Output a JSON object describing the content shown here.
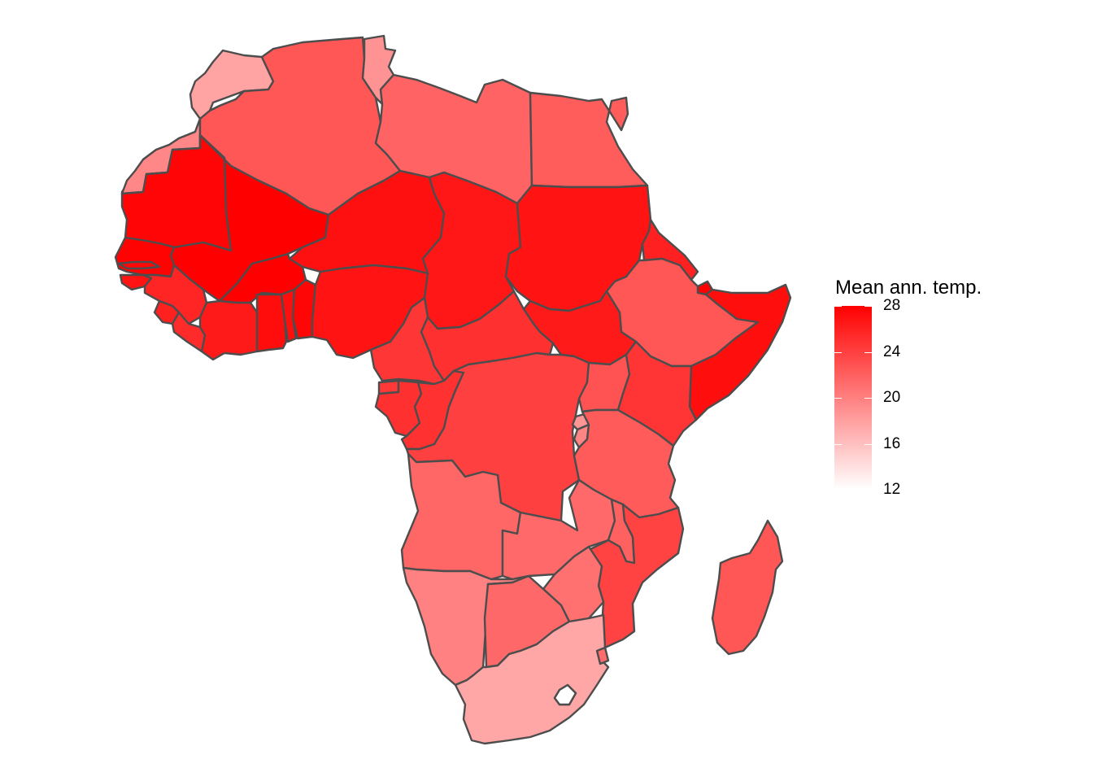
{
  "map": {
    "region": "Africa",
    "fill_low": "#ffffff",
    "fill_high": "#ff0000",
    "border_color": "#4d4d4d"
  },
  "legend": {
    "title": "Mean ann. temp.",
    "min": 12,
    "max": 28,
    "breaks": [
      "28",
      "24",
      "20",
      "16",
      "12"
    ]
  },
  "regions": [
    {
      "id": "morocco",
      "value": 17.8
    },
    {
      "id": "western-sahara",
      "value": 19.5
    },
    {
      "id": "algeria",
      "value": 22.6
    },
    {
      "id": "tunisia",
      "value": 18.8
    },
    {
      "id": "libya",
      "value": 21.8
    },
    {
      "id": "egypt",
      "value": 22.2
    },
    {
      "id": "mauritania",
      "value": 27.7
    },
    {
      "id": "mali",
      "value": 28.2
    },
    {
      "id": "niger",
      "value": 27.0
    },
    {
      "id": "chad",
      "value": 26.6
    },
    {
      "id": "sudan",
      "value": 26.8
    },
    {
      "id": "eritrea",
      "value": 25.9
    },
    {
      "id": "djibouti",
      "value": 28.0
    },
    {
      "id": "ethiopia",
      "value": 22.6
    },
    {
      "id": "somalia",
      "value": 27.1
    },
    {
      "id": "south-sudan",
      "value": 26.4
    },
    {
      "id": "senegal",
      "value": 27.9
    },
    {
      "id": "gambia",
      "value": 27.5
    },
    {
      "id": "guinea-bissau",
      "value": 26.8
    },
    {
      "id": "guinea",
      "value": 25.7
    },
    {
      "id": "sierra-leone",
      "value": 26.0
    },
    {
      "id": "liberia",
      "value": 25.3
    },
    {
      "id": "cote-d-ivoire",
      "value": 26.4
    },
    {
      "id": "burkina-faso",
      "value": 28.3
    },
    {
      "id": "ghana",
      "value": 27.2
    },
    {
      "id": "togo",
      "value": 27.1
    },
    {
      "id": "benin",
      "value": 27.6
    },
    {
      "id": "nigeria",
      "value": 26.8
    },
    {
      "id": "cameroon",
      "value": 24.6
    },
    {
      "id": "central-african-republic",
      "value": 25.0
    },
    {
      "id": "equatorial-guinea",
      "value": 24.5
    },
    {
      "id": "gabon",
      "value": 25.0
    },
    {
      "id": "congo",
      "value": 24.9
    },
    {
      "id": "dr-congo",
      "value": 24.0
    },
    {
      "id": "uganda",
      "value": 22.8
    },
    {
      "id": "kenya",
      "value": 24.7
    },
    {
      "id": "rwanda",
      "value": 18.6
    },
    {
      "id": "burundi",
      "value": 19.7
    },
    {
      "id": "tanzania",
      "value": 22.3
    },
    {
      "id": "angola",
      "value": 21.6
    },
    {
      "id": "zambia",
      "value": 21.4
    },
    {
      "id": "malawi",
      "value": 21.9
    },
    {
      "id": "mozambique",
      "value": 23.8
    },
    {
      "id": "zimbabwe",
      "value": 21.0
    },
    {
      "id": "namibia",
      "value": 19.9
    },
    {
      "id": "botswana",
      "value": 21.5
    },
    {
      "id": "south-africa",
      "value": 17.5
    },
    {
      "id": "lesotho",
      "value": 11.8
    },
    {
      "id": "eswatini",
      "value": 21.2
    },
    {
      "id": "madagascar",
      "value": 22.6
    }
  ]
}
